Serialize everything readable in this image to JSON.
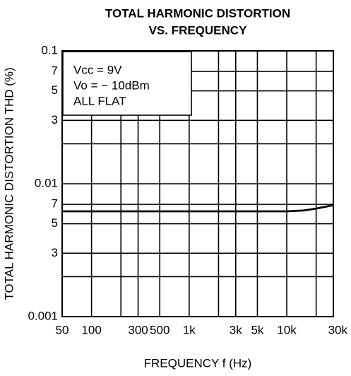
{
  "chart_data": {
    "type": "line",
    "title": [
      "TOTAL HARMONIC DISTORTION",
      "VS. FREQUENCY"
    ],
    "xlabel": "FREQUENCY  f  (Hz)",
    "ylabel": "TOTAL HARMONIC DISTORTION THD (%)",
    "annotations": [
      "Vcc = 9V",
      "Vo = − 10dBm",
      "ALL FLAT"
    ],
    "x": [
      50,
      100,
      1000,
      10000,
      15000,
      20000,
      30000
    ],
    "series": [
      {
        "name": null,
        "color": "#000000",
        "values": [
          0.0062,
          0.0062,
          0.0062,
          0.0062,
          0.0063,
          0.0065,
          0.0069
        ]
      }
    ],
    "xscale": "log",
    "yscale": "log",
    "xlim": [
      50,
      30000
    ],
    "ylim": [
      0.001,
      0.1
    ],
    "xticks": [
      50,
      100,
      300,
      500,
      {
        "value": 1000,
        "label": "1k"
      },
      {
        "value": 3000,
        "label": "3k"
      },
      {
        "value": 5000,
        "label": "5k"
      },
      {
        "value": 10000,
        "label": "10k"
      },
      {
        "value": 30000,
        "label": "30k"
      }
    ],
    "xminor": [
      200,
      2000,
      20000
    ],
    "yticks": [
      0.1,
      {
        "value": 0.07,
        "label": "7"
      },
      {
        "value": 0.05,
        "label": "5"
      },
      {
        "value": 0.03,
        "label": "3"
      },
      0.01,
      {
        "value": 0.007,
        "label": "7"
      },
      {
        "value": 0.005,
        "label": "5"
      },
      {
        "value": 0.003,
        "label": "3"
      },
      0.001
    ],
    "yminor": [
      0.002,
      0.02
    ],
    "grid": true
  }
}
